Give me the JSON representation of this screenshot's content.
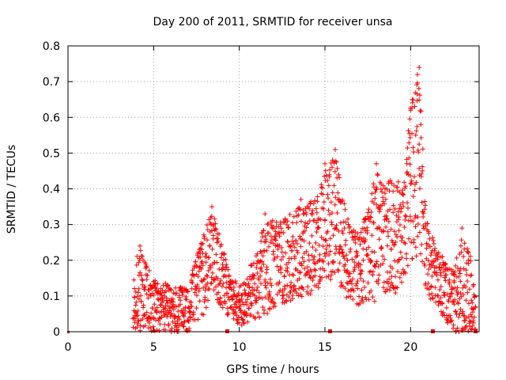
{
  "chart_data": {
    "type": "scatter",
    "title": "Day 200 of 2011, SRMTID for receiver unsa",
    "xlabel": "GPS time / hours",
    "ylabel": "SRMTID / TECUs",
    "xlim": [
      0,
      24
    ],
    "ylim": [
      0,
      0.8
    ],
    "x_ticks": [
      0,
      5,
      10,
      15,
      20
    ],
    "y_ticks": [
      0,
      0.1,
      0.2,
      0.3,
      0.4,
      0.5,
      0.6,
      0.7,
      0.8
    ],
    "grid": true,
    "marker": "+",
    "color": "#ff0000",
    "envelope": [
      {
        "x": 3.8,
        "lo": 0.0,
        "hi": 0.2
      },
      {
        "x": 4.2,
        "lo": 0.0,
        "hi": 0.24
      },
      {
        "x": 5.0,
        "lo": 0.0,
        "hi": 0.15
      },
      {
        "x": 6.0,
        "lo": 0.0,
        "hi": 0.14
      },
      {
        "x": 7.0,
        "lo": 0.0,
        "hi": 0.13
      },
      {
        "x": 7.5,
        "lo": 0.03,
        "hi": 0.22
      },
      {
        "x": 8.0,
        "lo": 0.05,
        "hi": 0.3
      },
      {
        "x": 8.4,
        "lo": 0.12,
        "hi": 0.35
      },
      {
        "x": 9.0,
        "lo": 0.05,
        "hi": 0.25
      },
      {
        "x": 9.5,
        "lo": 0.04,
        "hi": 0.15
      },
      {
        "x": 10.0,
        "lo": 0.02,
        "hi": 0.14
      },
      {
        "x": 11.0,
        "lo": 0.03,
        "hi": 0.22
      },
      {
        "x": 11.5,
        "lo": 0.05,
        "hi": 0.33
      },
      {
        "x": 12.5,
        "lo": 0.08,
        "hi": 0.32
      },
      {
        "x": 13.5,
        "lo": 0.09,
        "hi": 0.36
      },
      {
        "x": 14.5,
        "lo": 0.12,
        "hi": 0.38
      },
      {
        "x": 15.0,
        "lo": 0.15,
        "hi": 0.47
      },
      {
        "x": 15.6,
        "lo": 0.15,
        "hi": 0.51
      },
      {
        "x": 16.0,
        "lo": 0.12,
        "hi": 0.4
      },
      {
        "x": 16.5,
        "lo": 0.08,
        "hi": 0.3
      },
      {
        "x": 17.0,
        "lo": 0.07,
        "hi": 0.28
      },
      {
        "x": 17.5,
        "lo": 0.08,
        "hi": 0.35
      },
      {
        "x": 18.0,
        "lo": 0.09,
        "hi": 0.47
      },
      {
        "x": 18.5,
        "lo": 0.1,
        "hi": 0.42
      },
      {
        "x": 19.0,
        "lo": 0.1,
        "hi": 0.45
      },
      {
        "x": 19.5,
        "lo": 0.14,
        "hi": 0.42
      },
      {
        "x": 20.0,
        "lo": 0.2,
        "hi": 0.65
      },
      {
        "x": 20.5,
        "lo": 0.2,
        "hi": 0.74
      },
      {
        "x": 21.0,
        "lo": 0.1,
        "hi": 0.3
      },
      {
        "x": 21.5,
        "lo": 0.08,
        "hi": 0.25
      },
      {
        "x": 22.0,
        "lo": 0.03,
        "hi": 0.2
      },
      {
        "x": 22.5,
        "lo": 0.0,
        "hi": 0.18
      },
      {
        "x": 23.0,
        "lo": 0.0,
        "hi": 0.28
      },
      {
        "x": 23.5,
        "lo": 0.0,
        "hi": 0.22
      },
      {
        "x": 23.8,
        "lo": 0.0,
        "hi": 0.08
      }
    ],
    "highlights": [
      {
        "x": 8.4,
        "y": 0.35
      },
      {
        "x": 15.6,
        "y": 0.51
      },
      {
        "x": 20.5,
        "y": 0.74
      },
      {
        "x": 20.4,
        "y": 0.72
      },
      {
        "x": 20.1,
        "y": 0.65
      },
      {
        "x": 20.0,
        "y": 0.62
      },
      {
        "x": 20.6,
        "y": 0.58
      },
      {
        "x": 20.3,
        "y": 0.55
      },
      {
        "x": 18.0,
        "y": 0.47
      },
      {
        "x": 15.0,
        "y": 0.47
      },
      {
        "x": 13.6,
        "y": 0.37
      },
      {
        "x": 23.0,
        "y": 0.29
      },
      {
        "x": 4.2,
        "y": 0.24
      },
      {
        "x": 11.5,
        "y": 0.33
      }
    ],
    "axis_markers_x": [
      9.3,
      15.3,
      21.3,
      23.8
    ]
  }
}
